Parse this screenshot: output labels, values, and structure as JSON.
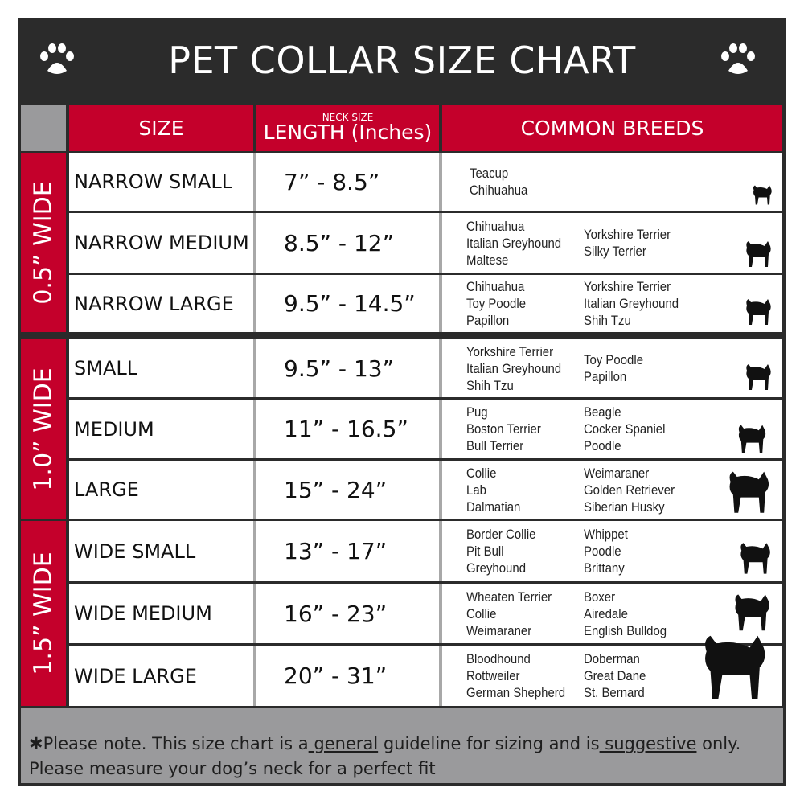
{
  "title": "PET COLLAR SIZE CHART",
  "icons": {
    "left": "paw-icon",
    "right": "paw-icon"
  },
  "colors": {
    "header_bg": "#2b2b2b",
    "accent_red": "#c4002b",
    "gray": "#9a9a9c"
  },
  "headers": {
    "size": "SIZE",
    "neck_small": "NECK SIZE",
    "length": "LENGTH (Inches)",
    "breeds": "COMMON BREEDS"
  },
  "groups": [
    {
      "label": "0.5” WIDE",
      "rows": [
        {
          "size": "NARROW SMALL",
          "length": "7” - 8.5”",
          "breeds_a": [
            "Teacup",
            "Chihuahua"
          ],
          "breeds_b": []
        },
        {
          "size": "NARROW MEDIUM",
          "length": "8.5” - 12”",
          "breeds_a": [
            "Chihuahua",
            "Italian Greyhound",
            "Maltese"
          ],
          "breeds_b": [
            "Yorkshire Terrier",
            "Silky Terrier"
          ]
        },
        {
          "size": "NARROW LARGE",
          "length": "9.5” - 14.5”",
          "breeds_a": [
            "Chihuahua",
            "Toy Poodle",
            "Papillon"
          ],
          "breeds_b": [
            "Yorkshire Terrier",
            "Italian Greyhound",
            "Shih Tzu"
          ]
        }
      ]
    },
    {
      "label": "1.0” WIDE",
      "rows": [
        {
          "size": "SMALL",
          "length": "9.5” - 13”",
          "breeds_a": [
            "Yorkshire Terrier",
            "Italian Greyhound",
            "Shih Tzu"
          ],
          "breeds_b": [
            "Toy Poodle",
            "Papillon"
          ]
        },
        {
          "size": "MEDIUM",
          "length": "11” - 16.5”",
          "breeds_a": [
            "Pug",
            "Boston Terrier",
            "Bull Terrier"
          ],
          "breeds_b": [
            "Beagle",
            "Cocker Spaniel",
            "Poodle"
          ]
        },
        {
          "size": "LARGE",
          "length": "15” - 24”",
          "breeds_a": [
            "Collie",
            "Lab",
            "Dalmatian"
          ],
          "breeds_b": [
            "Weimaraner",
            "Golden Retriever",
            "Siberian Husky"
          ]
        }
      ]
    },
    {
      "label": "1.5” WIDE",
      "rows": [
        {
          "size": "WIDE SMALL",
          "length": "13” - 17”",
          "breeds_a": [
            "Border Collie",
            "Pit Bull",
            "Greyhound"
          ],
          "breeds_b": [
            "Whippet",
            "Poodle",
            "Brittany"
          ]
        },
        {
          "size": "WIDE MEDIUM",
          "length": "16” - 23”",
          "breeds_a": [
            "Wheaten Terrier",
            "Collie",
            "Weimaraner"
          ],
          "breeds_b": [
            "Boxer",
            "Airedale",
            "English Bulldog"
          ]
        },
        {
          "size": "WIDE LARGE",
          "length": "20” - 31”",
          "breeds_a": [
            "Bloodhound",
            "Rottweiler",
            "German Shepherd"
          ],
          "breeds_b": [
            "Doberman",
            "Great Dane",
            "St. Bernard"
          ]
        }
      ]
    }
  ],
  "footer": {
    "p1": "✱Please note. This size chart is a",
    "u1": " general",
    "p2": " guideline for sizing and is",
    "u2": " suggestive",
    "p3": " only.",
    "line2": "Please measure your dog’s neck for a perfect fit"
  }
}
